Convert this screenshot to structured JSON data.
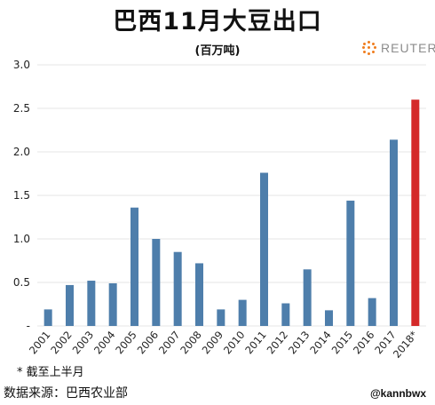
{
  "chart_data": {
    "type": "bar",
    "title": "巴西11月大豆出口",
    "subtitle": "(百万吨)",
    "categories": [
      "2001",
      "2002",
      "2003",
      "2004",
      "2005",
      "2006",
      "2007",
      "2008",
      "2009",
      "2010",
      "2011",
      "2012",
      "2013",
      "2014",
      "2015",
      "2016",
      "2017",
      "2018*"
    ],
    "values": [
      0.19,
      0.47,
      0.52,
      0.49,
      1.36,
      1.0,
      0.85,
      0.72,
      0.19,
      0.3,
      1.76,
      0.26,
      0.65,
      0.18,
      1.44,
      0.32,
      2.14,
      2.6
    ],
    "highlight_index": 17,
    "ylim": [
      0,
      3.0
    ],
    "yticks": [
      "-",
      "0.5",
      "1.0",
      "1.5",
      "2.0",
      "2.5",
      "3.0"
    ],
    "grid": true,
    "colors": {
      "bar": "#4e7eab",
      "highlight": "#d42a2a",
      "grid": "#e4e4e4"
    }
  },
  "brand": {
    "name": "REUTERS",
    "icon": "reuters-logo-icon"
  },
  "footnote": "* 截至上半月",
  "source": "数据来源：巴西农业部",
  "handle": "@kannbwx"
}
